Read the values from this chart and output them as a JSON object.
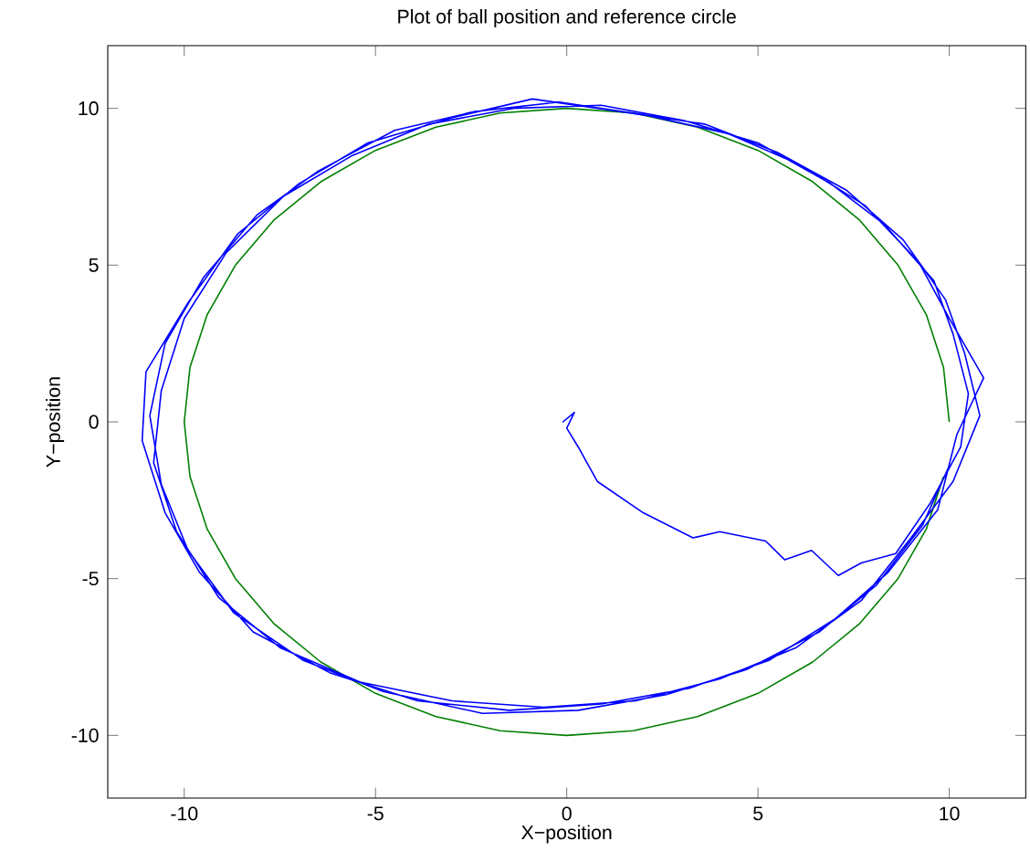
{
  "chart_data": {
    "type": "line",
    "title": "Plot of ball position and reference circle",
    "xlabel": "X−position",
    "ylabel": "Y−position",
    "xlim": [
      -12,
      12
    ],
    "ylim": [
      -12,
      12
    ],
    "xticks": [
      -10,
      -5,
      0,
      5,
      10
    ],
    "yticks": [
      -10,
      -5,
      0,
      5,
      10
    ],
    "grid": false,
    "series": [
      {
        "color": "#007f00",
        "x": [
          10,
          9.85,
          9.4,
          8.66,
          7.66,
          6.43,
          5,
          3.42,
          1.74,
          0,
          -1.74,
          -3.42,
          -5,
          -6.43,
          -7.66,
          -8.66,
          -9.4,
          -9.85,
          -10,
          -9.85,
          -9.4,
          -8.66,
          -7.66,
          -6.43,
          -5,
          -3.42,
          -1.74,
          0,
          1.74,
          3.42,
          5,
          6.43,
          7.66,
          8.66,
          9.4,
          9.85
        ],
        "values": [
          0,
          1.74,
          3.42,
          5,
          6.43,
          7.66,
          8.66,
          9.4,
          9.85,
          10,
          9.85,
          9.4,
          8.66,
          7.66,
          6.43,
          5,
          3.42,
          1.74,
          0,
          -1.74,
          -3.42,
          -5,
          -6.43,
          -7.66,
          -8.66,
          -9.4,
          -9.85,
          -10,
          -9.85,
          -9.4,
          -8.66,
          -7.66,
          -6.43,
          -5,
          -3.42,
          -1.74
        ]
      },
      {
        "color": "#0000ff",
        "x": [
          0.1,
          -0.1,
          0.2,
          0.0,
          0.3,
          0.8,
          2.0,
          3.3,
          4.0,
          5.2,
          5.7,
          6.4,
          7.1,
          7.7,
          8.6,
          9.5,
          10.3,
          10.5,
          10.1,
          9.6,
          8.3,
          6.9,
          5.0,
          3.1,
          0.9,
          -1.4,
          -3.6,
          -5.6,
          -7.4,
          -8.9,
          -10.0,
          -10.6,
          -10.8,
          -10.2,
          -9.1,
          -7.5,
          -5.4,
          -3.0,
          -0.6,
          1.8,
          4.0,
          6.0,
          7.7,
          9.0,
          10.1,
          10.8,
          10.4,
          9.9,
          8.8,
          7.3,
          5.5,
          3.6,
          1.4,
          -0.9,
          -3.0,
          -5.2,
          -7.0,
          -8.6,
          -9.9,
          -11.0,
          -11.1,
          -10.5,
          -9.6,
          -8.2,
          -6.2,
          -3.9,
          -1.5,
          0.9,
          3.2,
          5.3,
          7.0,
          8.4,
          9.7,
          10.2,
          10.9,
          10.0,
          9.2,
          7.8,
          6.1,
          4.2,
          2.0,
          -0.2,
          -2.4,
          -4.5,
          -6.5,
          -8.1,
          -9.5,
          -10.5,
          -10.9,
          -10.6,
          -9.9,
          -8.7,
          -6.9,
          -4.8,
          -2.2,
          0.3,
          2.6,
          4.7,
          6.6,
          8.1,
          9.3,
          10.0
        ],
        "values": [
          0.2,
          0.0,
          0.3,
          -0.2,
          -0.8,
          -1.9,
          -2.9,
          -3.7,
          -3.5,
          -3.8,
          -4.4,
          -4.1,
          -4.9,
          -4.5,
          -4.2,
          -2.6,
          -0.8,
          0.9,
          2.8,
          4.5,
          6.3,
          7.6,
          8.9,
          9.6,
          10.1,
          10.0,
          9.5,
          8.5,
          7.2,
          5.4,
          3.3,
          1.0,
          -1.3,
          -3.5,
          -5.6,
          -7.2,
          -8.3,
          -8.9,
          -9.1,
          -8.9,
          -8.2,
          -7.2,
          -5.7,
          -3.7,
          -1.9,
          0.2,
          2.2,
          3.9,
          5.8,
          7.4,
          8.6,
          9.5,
          9.9,
          10.3,
          9.7,
          8.9,
          7.6,
          6.0,
          3.8,
          1.6,
          -0.6,
          -2.9,
          -4.8,
          -6.7,
          -8.0,
          -8.9,
          -9.2,
          -9.0,
          -8.5,
          -7.6,
          -6.3,
          -4.8,
          -2.8,
          -0.4,
          1.4,
          3.3,
          5.1,
          6.9,
          8.2,
          9.2,
          9.8,
          10.2,
          9.9,
          9.3,
          8.0,
          6.6,
          4.6,
          2.5,
          0.2,
          -2.0,
          -4.1,
          -6.1,
          -7.6,
          -8.6,
          -9.3,
          -9.2,
          -8.7,
          -7.9,
          -6.7,
          -5.2,
          -3.3,
          -1.4
        ]
      }
    ]
  }
}
